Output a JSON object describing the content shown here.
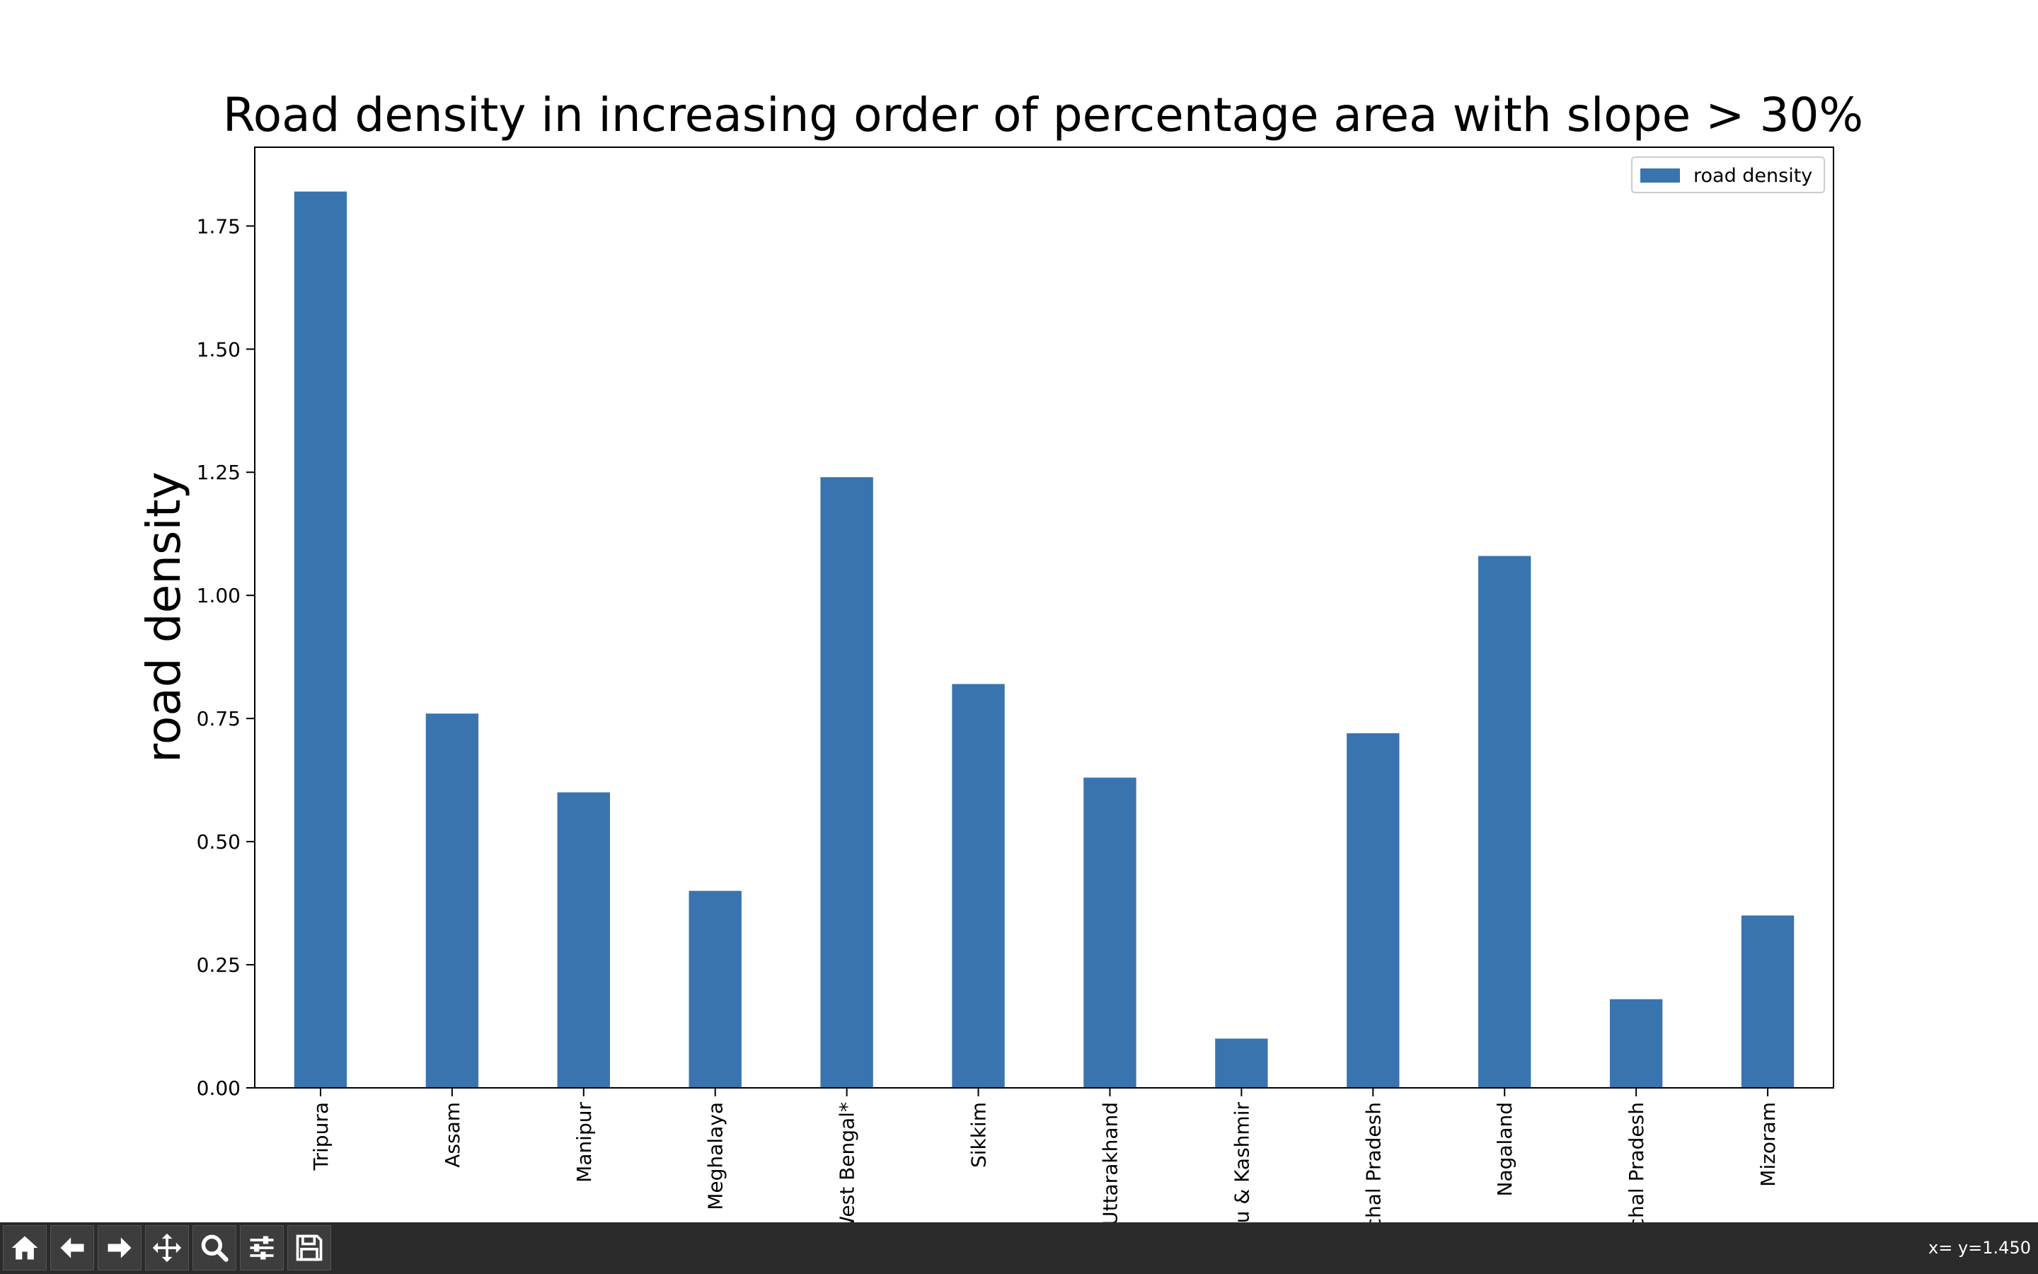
{
  "chart_data": {
    "type": "bar",
    "title": "Road density in increasing order of percentage area with slope > 30%",
    "xlabel": "",
    "ylabel": "road density",
    "categories": [
      "Tripura",
      "Assam",
      "Manipur",
      "Meghalaya",
      "West Bengal*",
      "Sikkim",
      "Uttarakhand",
      "Jammu & Kashmir",
      "Himachal Pradesh",
      "Nagaland",
      "Arunachal Pradesh",
      "Mizoram"
    ],
    "series": [
      {
        "name": "road density",
        "values": [
          1.82,
          0.76,
          0.6,
          0.4,
          1.24,
          0.82,
          0.63,
          0.1,
          0.72,
          1.08,
          0.18,
          0.35
        ],
        "color": "#3a74af"
      }
    ],
    "ylim": [
      0,
      1.91
    ],
    "yticks": [
      "0.00",
      "0.25",
      "0.50",
      "0.75",
      "1.00",
      "1.25",
      "1.50",
      "1.75"
    ],
    "legend": "top-right",
    "grid": false
  },
  "toolbar": {
    "buttons": [
      {
        "name": "home-button",
        "icon": "home-icon"
      },
      {
        "name": "back-button",
        "icon": "arrow-left-icon"
      },
      {
        "name": "forward-button",
        "icon": "arrow-right-icon"
      },
      {
        "name": "pan-button",
        "icon": "move-icon"
      },
      {
        "name": "zoom-button",
        "icon": "magnifier-icon"
      },
      {
        "name": "configure-subplots-button",
        "icon": "sliders-icon"
      },
      {
        "name": "save-button",
        "icon": "floppy-disk-icon"
      }
    ],
    "coords_text": "x= y=1.450"
  }
}
